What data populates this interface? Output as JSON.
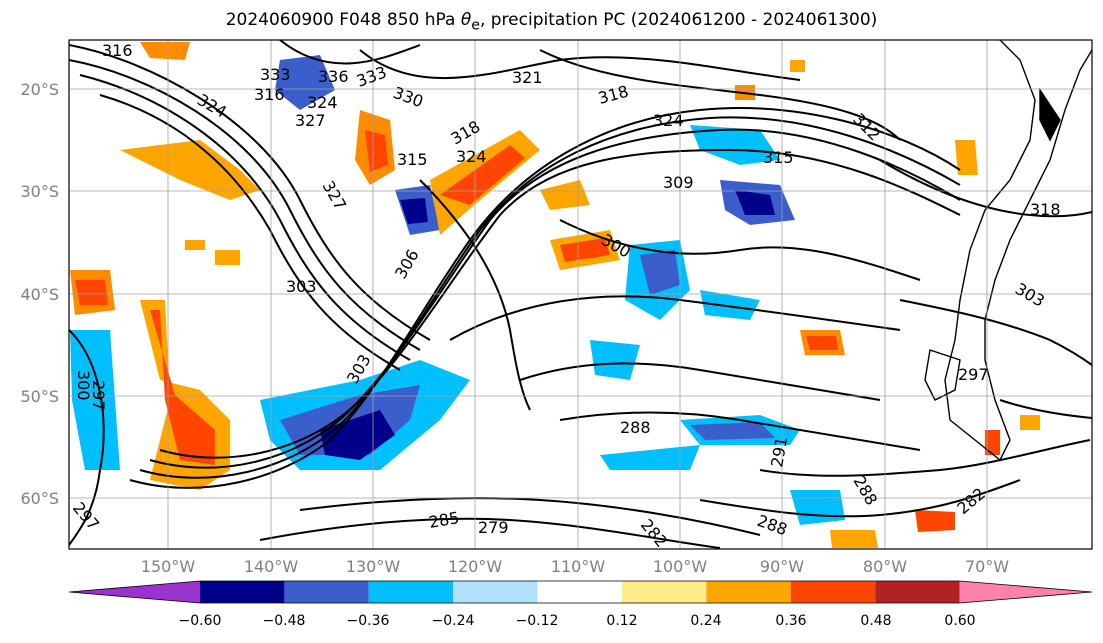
{
  "title": {
    "prefix": "2024060900 F048 850 hPa ",
    "symbol": "θ",
    "subscript": "e",
    "suffix": ", precipitation PC (2024061200 - 2024061300)"
  },
  "axes": {
    "lat_labels": [
      "20°S",
      "30°S",
      "40°S",
      "50°S",
      "60°S"
    ],
    "lon_labels": [
      "150°W",
      "140°W",
      "130°W",
      "120°W",
      "110°W",
      "100°W",
      "90°W",
      "80°W",
      "70°W"
    ]
  },
  "contour_labels": [
    "316",
    "324",
    "316",
    "333",
    "336",
    "330",
    "321",
    "318",
    "333",
    "324",
    "327",
    "318",
    "324",
    "315",
    "312",
    "324",
    "327",
    "309",
    "315",
    "300",
    "306",
    "303",
    "303",
    "300",
    "297",
    "288",
    "291",
    "288",
    "285",
    "279",
    "282",
    "288",
    "282",
    "297",
    "297",
    "318",
    "303"
  ],
  "colorbar": {
    "ticks": [
      "−0.60",
      "−0.48",
      "−0.36",
      "−0.24",
      "−0.12",
      "0.12",
      "0.24",
      "0.36",
      "0.48",
      "0.60"
    ],
    "colors": [
      "#9a32cd",
      "#00008b",
      "#3a5fcd",
      "#00bfff",
      "#b0e2ff",
      "#ffffff",
      "#ffec8b",
      "#ffa500",
      "#ff4500",
      "#b22222",
      "#ff82ab"
    ]
  },
  "palette": {
    "grid": "#a0a0a0",
    "contour": "#000000",
    "land": "#000000"
  }
}
